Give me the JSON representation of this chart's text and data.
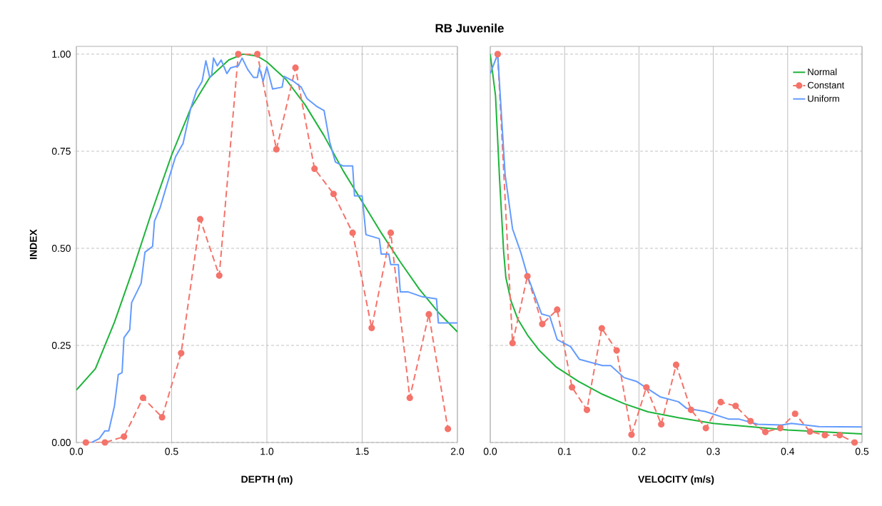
{
  "chart_data": [
    {
      "type": "line",
      "title": "RB Juvenile",
      "xlabel": "DEPTH (m)",
      "ylabel": "INDEX",
      "grid": true,
      "xlim": [
        0,
        2
      ],
      "ylim": [
        0,
        1.02
      ],
      "xticks": [
        {
          "value": 0,
          "label": "0.0"
        },
        {
          "value": 0.5,
          "label": "0.5"
        },
        {
          "value": 1,
          "label": "1.0"
        },
        {
          "value": 1.5,
          "label": "1.5"
        },
        {
          "value": 2,
          "label": "2.0"
        }
      ],
      "yticks": [
        {
          "value": 0,
          "label": "0.00"
        },
        {
          "value": 0.25,
          "label": "0.25"
        },
        {
          "value": 0.5,
          "label": "0.50"
        },
        {
          "value": 0.75,
          "label": "0.75"
        },
        {
          "value": 1,
          "label": "1.00"
        }
      ],
      "series": [
        {
          "color": "#1db43a",
          "marker": "none",
          "line_style": "solid",
          "x": [
            0,
            0.1,
            0.2,
            0.3,
            0.4,
            0.5,
            0.6,
            0.7,
            0.8,
            0.875,
            0.95,
            1.0,
            1.1,
            1.2,
            1.3,
            1.4,
            1.5,
            1.6,
            1.7,
            1.8,
            1.9,
            2.0
          ],
          "values": [
            0.135,
            0.19,
            0.31,
            0.45,
            0.6,
            0.74,
            0.86,
            0.94,
            0.985,
            1.0,
            0.995,
            0.98,
            0.935,
            0.87,
            0.79,
            0.7,
            0.62,
            0.54,
            0.465,
            0.395,
            0.335,
            0.285
          ]
        },
        {
          "color": "#f4736a",
          "marker": "circle",
          "line_style": "dashed",
          "x": [
            0.05,
            0.15,
            0.25,
            0.35,
            0.45,
            0.55,
            0.65,
            0.75,
            0.85,
            0.95,
            1.05,
            1.15,
            1.25,
            1.35,
            1.45,
            1.55,
            1.65,
            1.75,
            1.85,
            1.95
          ],
          "values": [
            0.0,
            0.0,
            0.015,
            0.115,
            0.065,
            0.23,
            0.575,
            0.43,
            1.0,
            1.0,
            0.755,
            0.965,
            0.705,
            0.64,
            0.54,
            0.295,
            0.54,
            0.115,
            0.33,
            0.035
          ]
        },
        {
          "color": "#639bff",
          "marker": "none",
          "line_style": "solid",
          "x": [
            0.08,
            0.12,
            0.15,
            0.17,
            0.2,
            0.22,
            0.24,
            0.25,
            0.28,
            0.29,
            0.34,
            0.36,
            0.4,
            0.41,
            0.44,
            0.47,
            0.52,
            0.56,
            0.6,
            0.63,
            0.66,
            0.68,
            0.7,
            0.71,
            0.72,
            0.74,
            0.76,
            0.79,
            0.81,
            0.85,
            0.87,
            0.9,
            0.93,
            0.95,
            0.96,
            0.98,
            1.0,
            1.03,
            1.08,
            1.09,
            1.14,
            1.18,
            1.21,
            1.26,
            1.3,
            1.33,
            1.36,
            1.4,
            1.45,
            1.46,
            1.5,
            1.52,
            1.59,
            1.6,
            1.64,
            1.65,
            1.69,
            1.7,
            1.74,
            1.81,
            1.89,
            1.9,
            2.0
          ],
          "values": [
            0.0,
            0.01,
            0.03,
            0.03,
            0.094,
            0.175,
            0.18,
            0.27,
            0.29,
            0.36,
            0.41,
            0.49,
            0.505,
            0.57,
            0.605,
            0.655,
            0.735,
            0.77,
            0.86,
            0.905,
            0.93,
            0.983,
            0.94,
            0.945,
            0.99,
            0.97,
            0.985,
            0.95,
            0.965,
            0.97,
            0.99,
            0.96,
            0.94,
            0.94,
            0.965,
            0.93,
            0.967,
            0.91,
            0.915,
            0.943,
            0.93,
            0.915,
            0.886,
            0.866,
            0.855,
            0.773,
            0.722,
            0.712,
            0.712,
            0.635,
            0.635,
            0.535,
            0.525,
            0.485,
            0.485,
            0.458,
            0.458,
            0.388,
            0.388,
            0.376,
            0.37,
            0.308,
            0.308
          ]
        }
      ]
    },
    {
      "type": "line",
      "xlabel": "VELOCITY (m/s)",
      "grid": true,
      "legend": "top right",
      "tick_labels": "x",
      "xlim": [
        0,
        0.5
      ],
      "ylim": [
        0,
        1.02
      ],
      "xticks": [
        {
          "value": 0,
          "label": "0.0"
        },
        {
          "value": 0.1,
          "label": "0.1"
        },
        {
          "value": 0.2,
          "label": "0.2"
        },
        {
          "value": 0.3,
          "label": "0.3"
        },
        {
          "value": 0.4,
          "label": "0.4"
        },
        {
          "value": 0.5,
          "label": "0.5"
        }
      ],
      "yticks": [
        0,
        0.25,
        0.5,
        0.75,
        1
      ],
      "series": [
        {
          "name": "Normal",
          "color": "#1db43a",
          "marker": "none",
          "line_style": "solid",
          "x": [
            0,
            0.0071,
            0.0125,
            0.018,
            0.021,
            0.028,
            0.037,
            0.05,
            0.066,
            0.089,
            0.119,
            0.151,
            0.18,
            0.212,
            0.253,
            0.3,
            0.4,
            0.5
          ],
          "values": [
            1.0,
            0.893,
            0.68,
            0.492,
            0.425,
            0.364,
            0.318,
            0.277,
            0.237,
            0.194,
            0.157,
            0.124,
            0.1,
            0.079,
            0.064,
            0.049,
            0.032,
            0.022
          ]
        },
        {
          "name": "Constant",
          "color": "#f4736a",
          "marker": "circle",
          "line_style": "dashed",
          "x": [
            0.01,
            0.03,
            0.05,
            0.07,
            0.09,
            0.11,
            0.13,
            0.15,
            0.17,
            0.19,
            0.21,
            0.23,
            0.25,
            0.27,
            0.29,
            0.31,
            0.33,
            0.35,
            0.37,
            0.39,
            0.41,
            0.43,
            0.45,
            0.47,
            0.49
          ],
          "values": [
            1.0,
            0.256,
            0.428,
            0.305,
            0.342,
            0.142,
            0.084,
            0.294,
            0.237,
            0.02,
            0.142,
            0.047,
            0.2,
            0.084,
            0.037,
            0.104,
            0.094,
            0.055,
            0.027,
            0.037,
            0.074,
            0.028,
            0.019,
            0.019,
            0.0
          ]
        },
        {
          "name": "Uniform",
          "color": "#639bff",
          "marker": "none",
          "line_style": "solid",
          "x": [
            0,
            0.01,
            0.02,
            0.03,
            0.041,
            0.05,
            0.069,
            0.08,
            0.09,
            0.108,
            0.12,
            0.151,
            0.162,
            0.18,
            0.197,
            0.229,
            0.253,
            0.264,
            0.289,
            0.321,
            0.335,
            0.36,
            0.392,
            0.405,
            0.442,
            0.5
          ],
          "values": [
            0.95,
            1.0,
            0.69,
            0.55,
            0.49,
            0.43,
            0.331,
            0.325,
            0.265,
            0.247,
            0.214,
            0.198,
            0.198,
            0.167,
            0.157,
            0.117,
            0.105,
            0.088,
            0.08,
            0.06,
            0.06,
            0.047,
            0.045,
            0.049,
            0.041,
            0.04
          ]
        }
      ]
    }
  ]
}
